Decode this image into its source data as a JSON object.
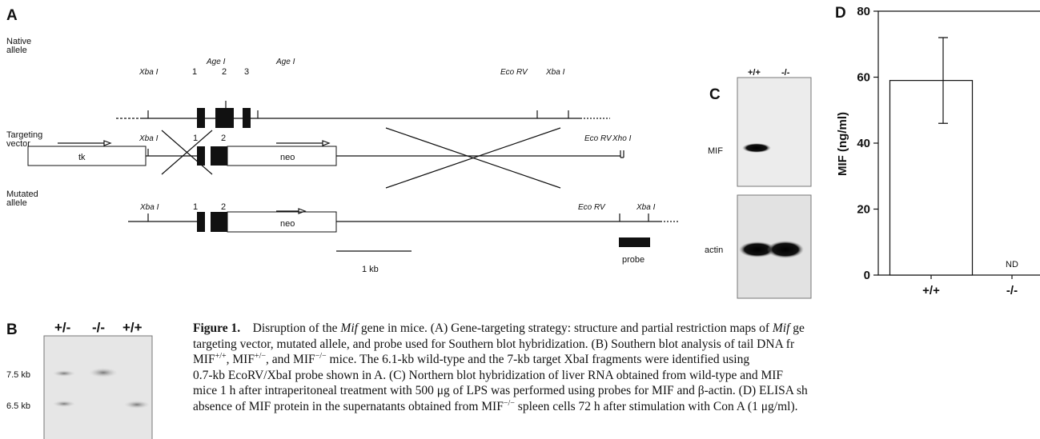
{
  "panel_a": {
    "label": "A",
    "rows": {
      "native": [
        "Native",
        "allele"
      ],
      "targeting": [
        "Targeting",
        "vector"
      ],
      "mutated": [
        "Mutated",
        "allele"
      ]
    },
    "native_labels": {
      "xba1": "Xba I",
      "e1": "1",
      "e2": "2",
      "e3": "3",
      "age1": "Age I",
      "age2": "Age I",
      "ecorv": "Eco RV",
      "xba2": "Xba I"
    },
    "vector_labels": {
      "xba": "Xba I",
      "e1": "1",
      "e2": "2",
      "tk": "tk",
      "neo": "neo",
      "ecorv": "Eco RV",
      "xho": "Xho I"
    },
    "mutated_labels": {
      "xba1": "Xba I",
      "e1": "1",
      "e2": "2",
      "neo": "neo",
      "ecorv": "Eco RV",
      "xba2": "Xba I",
      "probe": "probe"
    },
    "scale": "1 kb"
  },
  "panel_b": {
    "label": "B",
    "lanes": [
      "+/-",
      "-/-",
      "+/+"
    ],
    "sizes": [
      "7.5 kb",
      "6.5 kb"
    ]
  },
  "panel_c": {
    "label": "C",
    "lanes": [
      "+/+",
      "-/-"
    ],
    "probes": [
      "MIF",
      "actin"
    ]
  },
  "chart_data": {
    "type": "bar",
    "label": "D",
    "y_label": "MIF (ng/ml)",
    "categories": [
      "+/+",
      "-/-"
    ],
    "values": [
      59,
      null
    ],
    "errors": [
      13,
      null
    ],
    "annotation": "ND",
    "color": "#ffffff",
    "ylim": [
      0,
      80
    ],
    "yticks": [
      0,
      20,
      40,
      60,
      80
    ]
  },
  "caption": {
    "lines": [
      [
        {
          "b": "Figure 1."
        },
        "    Disruption of the ",
        {
          "i": "Mif"
        },
        " gene in mice. (A) Gene-targeting strategy: structure and partial restriction maps of ",
        {
          "i": "Mif"
        },
        " ge"
      ],
      [
        "targeting vector, mutated allele, and probe used for Southern blot hybridization. (B) Southern blot analysis of tail DNA fr"
      ],
      [
        "MIF",
        {
          "sup": "+/+"
        },
        ", MIF",
        {
          "sup": "+/−"
        },
        ", and MIF",
        {
          "sup": "−/−"
        },
        " mice. The 6.1-kb wild-type and the 7-kb target XbaI fragments were identified using"
      ],
      [
        "0.7-kb EcoRV/XbaI probe shown in A. (C) Northern blot hybridization of liver RNA obtained from wild-type and MIF"
      ],
      [
        "mice 1 h after intraperitoneal treatment with 500 μg of LPS was performed using probes for MIF and β-actin. (D) ELISA sh"
      ],
      [
        "absence of MIF protein in the supernatants obtained from MIF",
        {
          "sup": "−/−"
        },
        " spleen cells 72 h after stimulation with Con A (1 μg/ml)."
      ]
    ]
  }
}
